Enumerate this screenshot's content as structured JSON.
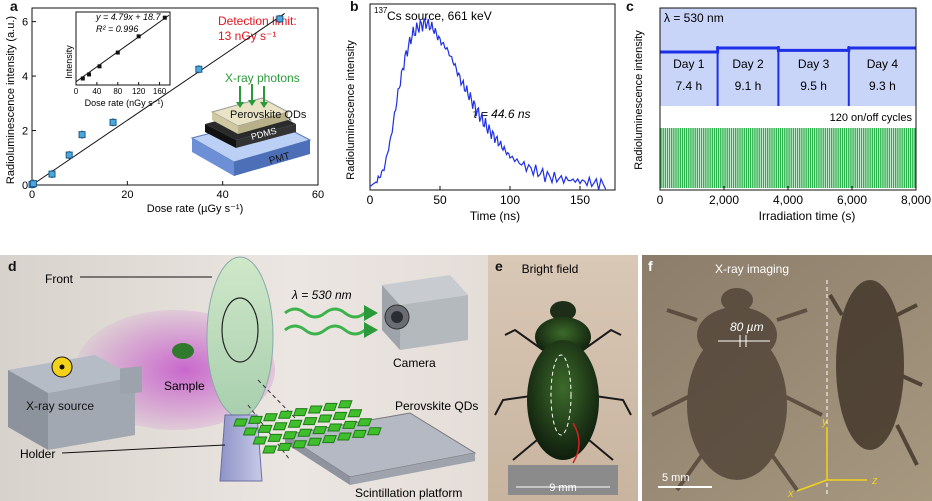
{
  "panels": {
    "a": "a",
    "b": "b",
    "c": "c",
    "d": "d",
    "e": "e",
    "f": "f"
  },
  "panel_a": {
    "ylabel": "Radioluminescence intensity (a.u.)",
    "xlabel": "Dose rate (µGy s⁻¹)",
    "detection_label": "Detection limit:",
    "detection_value": "13 nGy s⁻¹",
    "inset_equation": "y = 4.79x + 18.7",
    "inset_r2": "R² = 0.996",
    "inset_ylabel": "Intensity",
    "inset_xlabel": "Dose rate (nGy s⁻¹)",
    "device_xray": "X-ray photons",
    "device_qds": "Perovskite QDs",
    "device_pdms": "PDMS",
    "device_pmt": "PMT"
  },
  "panel_b": {
    "ylabel": "Radioluminescence intensity",
    "xlabel": "Time (ns)",
    "source_sup": "137",
    "source_text": "Cs source, 661 keV",
    "tau": "τ = 44.6 ns"
  },
  "panel_c": {
    "ylabel": "Radioluminescence intensity",
    "xlabel": "Irradiation time (s)",
    "lambda": "λ = 530 nm",
    "cycles": "120 on/off cycles",
    "days": [
      {
        "label": "Day 1",
        "hours": "7.4 h"
      },
      {
        "label": "Day 2",
        "hours": "9.1 h"
      },
      {
        "label": "Day 3",
        "hours": "9.5 h"
      },
      {
        "label": "Day 4",
        "hours": "9.3 h"
      }
    ]
  },
  "panel_d": {
    "front": "Front",
    "lambda": "λ = 530 nm",
    "camera": "Camera",
    "sample": "Sample",
    "xray_source": "X-ray source",
    "perovskite": "Perovskite QDs",
    "holder": "Holder",
    "platform": "Scintillation platform"
  },
  "panel_e": {
    "title": "Bright field",
    "scale": "9 mm"
  },
  "panel_f": {
    "title": "X-ray imaging",
    "width_label": "80 µm",
    "scale": "5 mm",
    "axis_x": "x",
    "axis_y": "y",
    "axis_z": "z"
  },
  "chart_data": [
    {
      "type": "scatter",
      "panel": "a",
      "x": [
        0,
        0.3,
        4.2,
        7.8,
        10.5,
        17,
        35,
        52
      ],
      "y": [
        0.02,
        0.05,
        0.4,
        1.1,
        1.85,
        2.3,
        4.25,
        6.1
      ],
      "fit": {
        "x": [
          0,
          53
        ],
        "y": [
          0,
          6.3
        ]
      },
      "xlim": [
        0,
        60
      ],
      "ylim": [
        0,
        6.5
      ],
      "xticks": [
        0,
        20,
        40,
        60
      ],
      "yticks": [
        0,
        2,
        4,
        6
      ],
      "xlabel": "Dose rate (µGy s⁻¹)",
      "ylabel": "Radioluminescence intensity (a.u.)"
    },
    {
      "type": "scatter",
      "panel": "a-inset",
      "x": [
        13,
        25,
        45,
        80,
        120,
        170
      ],
      "y": [
        80,
        130,
        230,
        400,
        600,
        830
      ],
      "xlim": [
        0,
        180
      ],
      "ylim": [
        0,
        900
      ],
      "xticks": [
        0,
        40,
        80,
        120,
        160
      ],
      "xlabel": "Dose rate (nGy s⁻¹)",
      "ylabel": "Intensity"
    },
    {
      "type": "line",
      "panel": "b",
      "x": [
        0,
        5,
        10,
        15,
        20,
        25,
        30,
        35,
        40,
        45,
        50,
        55,
        60,
        65,
        70,
        75,
        80,
        85,
        90,
        95,
        100,
        110,
        120,
        130,
        140,
        150,
        160,
        170
      ],
      "y": [
        0.02,
        0.05,
        0.12,
        0.3,
        0.55,
        0.75,
        0.88,
        0.93,
        0.95,
        0.92,
        0.85,
        0.8,
        0.72,
        0.62,
        0.55,
        0.47,
        0.4,
        0.34,
        0.29,
        0.24,
        0.19,
        0.14,
        0.1,
        0.07,
        0.06,
        0.05,
        0.04,
        0.03
      ],
      "xlim": [
        0,
        175
      ],
      "xticks": [
        0,
        50,
        100,
        150
      ],
      "xlabel": "Time (ns)",
      "ylabel": "Radioluminescence intensity"
    },
    {
      "type": "line",
      "panel": "c",
      "xlim": [
        0,
        8000
      ],
      "xticks": [
        0,
        2000,
        4000,
        6000,
        8000
      ],
      "xlabel": "Irradiation time (s)",
      "ylabel": "Radioluminescence intensity",
      "series": [
        {
          "name": "λ = 530 nm",
          "x": [
            0,
            1800,
            1800,
            3700,
            3700,
            5900,
            5900,
            8000
          ],
          "y": [
            0.95,
            0.95,
            1.0,
            1.0,
            0.97,
            0.97,
            1.0,
            1.0
          ]
        },
        {
          "name": "120 on/off cycles",
          "cycles": 120
        }
      ],
      "day_boundaries": [
        1800,
        3700,
        5900
      ]
    }
  ]
}
